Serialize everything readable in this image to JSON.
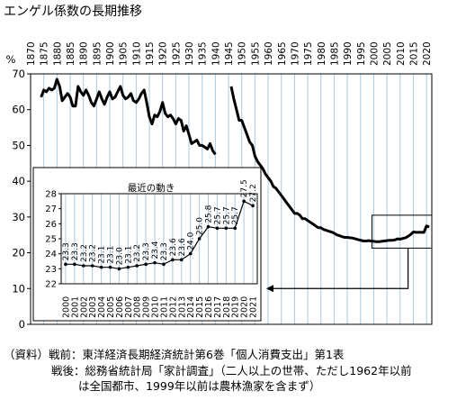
{
  "title": "エンゲル係数の長期推移",
  "chart_data": [
    {
      "type": "line",
      "ylabel": "%",
      "ylim": [
        0,
        70
      ],
      "yticks": [
        0,
        10,
        20,
        30,
        40,
        50,
        60,
        70
      ],
      "xlim": [
        1870,
        2022
      ],
      "xticks": [
        1870,
        1875,
        1880,
        1885,
        1890,
        1895,
        1900,
        1905,
        1910,
        1915,
        1920,
        1925,
        1930,
        1935,
        1940,
        1945,
        1950,
        1955,
        1960,
        1965,
        1970,
        1975,
        1980,
        1985,
        1990,
        1995,
        2000,
        2005,
        2010,
        2015,
        2020
      ],
      "grid": "vertical",
      "series": [
        {
          "x": [
            1874,
            1875,
            1876,
            1877,
            1878,
            1879,
            1880,
            1881,
            1882,
            1883,
            1884,
            1885,
            1886,
            1887,
            1888,
            1889,
            1890,
            1891,
            1892,
            1893,
            1894,
            1895,
            1896,
            1897,
            1898,
            1899,
            1900,
            1901,
            1902,
            1903,
            1904,
            1905,
            1906,
            1907,
            1908,
            1909,
            1910,
            1911,
            1912,
            1913,
            1914,
            1915,
            1916,
            1917,
            1918,
            1919,
            1920,
            1921,
            1922,
            1923,
            1924,
            1925,
            1926,
            1927,
            1928,
            1929,
            1930,
            1931,
            1932,
            1933,
            1934,
            1935,
            1936,
            1937,
            1938,
            1939,
            1940
          ],
          "y": [
            63.5,
            65.5,
            65,
            66,
            65.5,
            66,
            68.5,
            66.5,
            62.5,
            63.5,
            64.5,
            63.5,
            61,
            61,
            66.5,
            65,
            64,
            65.5,
            64,
            62,
            61,
            63,
            65,
            63,
            61.5,
            63.5,
            65,
            63,
            63.5,
            65,
            66.5,
            64,
            63,
            63.5,
            64.5,
            62.5,
            62,
            63,
            64.5,
            65.5,
            62,
            58,
            56,
            58.5,
            58,
            59.5,
            62,
            59,
            58,
            58.5,
            57.5,
            56,
            57.5,
            57,
            54,
            55.5,
            53,
            50.5,
            51,
            51.5,
            50,
            50,
            49.5,
            49,
            50.5,
            48.5,
            47.5
          ]
        },
        {
          "x": [
            1946,
            1947,
            1948,
            1949,
            1950,
            1951,
            1952,
            1953,
            1954,
            1955,
            1956,
            1957,
            1958,
            1959,
            1960,
            1961,
            1962,
            1963,
            1964,
            1965,
            1966,
            1967,
            1968,
            1969,
            1970,
            1971,
            1972,
            1973,
            1974,
            1975,
            1976,
            1977,
            1978,
            1979,
            1980,
            1981,
            1982,
            1983,
            1984,
            1985,
            1986,
            1987,
            1988,
            1989,
            1990,
            1991,
            1992,
            1993,
            1994,
            1995,
            1996,
            1997,
            1998,
            1999,
            2000,
            2001,
            2002,
            2003,
            2004,
            2005,
            2006,
            2007,
            2008,
            2009,
            2010,
            2011,
            2012,
            2013,
            2014,
            2015,
            2016,
            2017,
            2018,
            2019,
            2020,
            2021
          ],
          "y": [
            66.5,
            63,
            60,
            57,
            57,
            55,
            53,
            51,
            50,
            47,
            45.5,
            44.5,
            43.5,
            42,
            41,
            40,
            38.5,
            38,
            37,
            36,
            35,
            34,
            33,
            32,
            31,
            31,
            30.5,
            29.5,
            29.5,
            29,
            28.5,
            28,
            27.5,
            27,
            27,
            26.5,
            26.3,
            26,
            25.8,
            25.5,
            25,
            24.8,
            24.5,
            24.3,
            24.3,
            24.2,
            24.1,
            23.9,
            23.7,
            23.5,
            23.3,
            23.3,
            23.4,
            23.3,
            23.2,
            23.1,
            23.1,
            23.2,
            23.3,
            23.4,
            23.5,
            23.5,
            23.6,
            23.9,
            23.8,
            24,
            24.2,
            24.6,
            25.1,
            25.8,
            25.7,
            25.7,
            25.7,
            25.7,
            27.5,
            27.2
          ]
        }
      ]
    },
    {
      "type": "line",
      "title": "最近の動き",
      "ylim": [
        22,
        28
      ],
      "yticks": [
        22,
        23,
        24,
        25,
        26,
        27,
        28
      ],
      "categories": [
        "2000",
        "2001",
        "2002",
        "2003",
        "2004",
        "2005",
        "2006",
        "2007",
        "2008",
        "2009",
        "2010",
        "2011",
        "2012",
        "2013",
        "2014",
        "2015",
        "2016",
        "2017",
        "2018",
        "2019",
        "2020",
        "2021"
      ],
      "values": [
        23.3,
        23.3,
        23.2,
        23.2,
        23.1,
        23.1,
        23.0,
        23.1,
        23.2,
        23.3,
        23.4,
        23.3,
        23.6,
        23.6,
        24.0,
        25.0,
        25.8,
        25.7,
        25.7,
        25.7,
        27.5,
        27.2
      ],
      "data_labels": [
        "23.3",
        "23.3",
        "23.2",
        "23.2",
        "23.1",
        "23.1",
        "23.0",
        "23.1",
        "23.2",
        "23.3",
        "23.4",
        "23.3",
        "23.6",
        "23.6",
        "24.0",
        "25.0",
        "25.8",
        "25.7",
        "25.7",
        "25.7",
        "27.5",
        "27.2"
      ],
      "grid": "vertical"
    }
  ],
  "source": {
    "line1": "（資料）戦前：東洋経済長期経済統計第6巻「個人消費支出」第1表",
    "line2": "戦後：総務省統計局「家計調査」（二人以上の世帯、ただし1962年以前",
    "line3": "は全国都市、1999年以前は農林漁家を含まず）"
  }
}
